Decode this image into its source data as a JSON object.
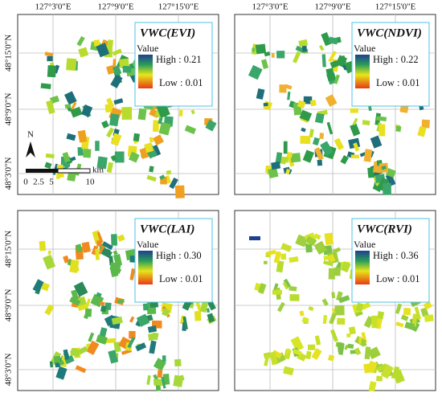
{
  "panels": [
    {
      "title": "VWC(EVI)",
      "legend_title": "Value",
      "high": "High : 0.21",
      "low": "Low : 0.01"
    },
    {
      "title": "VWC(NDVI)",
      "legend_title": "Value",
      "high": "High : 0.22",
      "low": "Low : 0.01"
    },
    {
      "title": "VWC(LAI)",
      "legend_title": "Value",
      "high": "High : 0.30",
      "low": "Low : 0.01"
    },
    {
      "title": "VWC(RVI)",
      "legend_title": "Value",
      "high": "High : 0.36",
      "low": "Low : 0.01"
    }
  ],
  "longitude_labels": [
    "127°3'0\"E",
    "127°9'0\"E",
    "127°15'0\"E"
  ],
  "latitude_labels": [
    "48°15'0\"N",
    "48°9'0\"N",
    "48°3'0\"N"
  ],
  "north": "N",
  "scale": {
    "unit": "km",
    "ticks": [
      "0",
      "2.5",
      "5",
      "10"
    ]
  }
}
